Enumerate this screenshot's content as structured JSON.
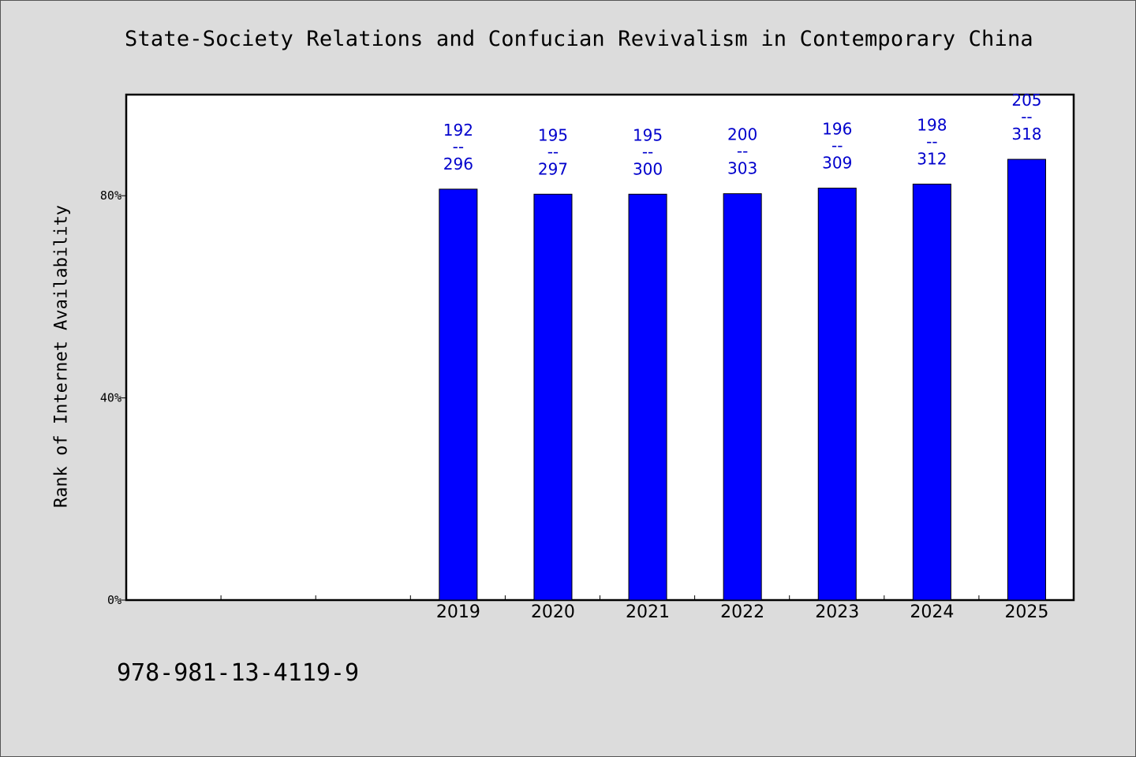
{
  "chart_data": {
    "type": "bar",
    "title": "State-Society Relations and Confucian Revivalism in Contemporary China",
    "ylabel": "Rank of Internet Availability",
    "xlabel": "",
    "categories": [
      "",
      "",
      "",
      "2019",
      "2020",
      "2021",
      "2022",
      "2023",
      "2024",
      "2025"
    ],
    "values": [
      null,
      null,
      null,
      81.3,
      80.3,
      80.3,
      80.4,
      81.5,
      82.3,
      87.2
    ],
    "data_labels": [
      null,
      null,
      null,
      {
        "top": "192",
        "sep": "--",
        "bottom": "296"
      },
      {
        "top": "195",
        "sep": "--",
        "bottom": "297"
      },
      {
        "top": "195",
        "sep": "--",
        "bottom": "300"
      },
      {
        "top": "200",
        "sep": "--",
        "bottom": "303"
      },
      {
        "top": "196",
        "sep": "--",
        "bottom": "309"
      },
      {
        "top": "198",
        "sep": "--",
        "bottom": "312"
      },
      {
        "top": "205",
        "sep": "--",
        "bottom": "318"
      }
    ],
    "yticks": [
      0,
      40,
      80
    ],
    "ytick_labels": [
      "0%",
      "40%",
      "80%"
    ],
    "ylim": [
      0,
      100
    ],
    "grid": false,
    "bar_color": "#0000ff",
    "label_color": "#0000cc"
  },
  "footer": {
    "isbn": "978-981-13-4119-9"
  }
}
